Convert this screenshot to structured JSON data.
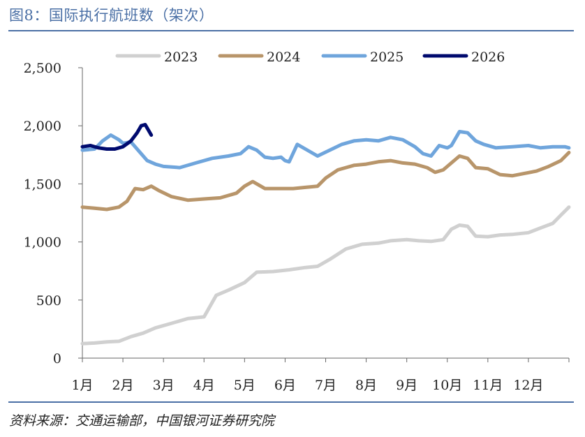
{
  "header": {
    "title": "图8：国际执行航班数（架次）"
  },
  "footer": {
    "source": "资料来源：交通运输部，中国银河证券研究院"
  },
  "colors": {
    "rule": "#4a6fa5",
    "s2023": "#d0d0d0",
    "s2024": "#b8956a",
    "s2025": "#6fa5dc",
    "s2026": "#000a6e"
  },
  "chart_data": {
    "type": "line",
    "title": "国际执行航班数（架次）",
    "xlabel": "",
    "ylabel": "",
    "ylim": [
      0,
      2500
    ],
    "xlim": [
      1,
      13
    ],
    "y_ticks": [
      "2,500",
      "2,000",
      "1,500",
      "1,000",
      "500",
      "0"
    ],
    "y_tick_values": [
      2500,
      2000,
      1500,
      1000,
      500,
      0
    ],
    "x_ticks": [
      "1月",
      "2月",
      "3月",
      "4月",
      "5月",
      "6月",
      "7月",
      "8月",
      "9月",
      "10月",
      "11月",
      "12月"
    ],
    "legend": [
      "2023",
      "2024",
      "2025",
      "2026"
    ],
    "legend_position": "top",
    "series": [
      {
        "name": "2023",
        "x": [
          1.0,
          1.3,
          1.6,
          1.9,
          2.2,
          2.5,
          2.8,
          3.2,
          3.6,
          4.0,
          4.3,
          4.6,
          5.0,
          5.3,
          5.7,
          6.1,
          6.5,
          6.8,
          7.1,
          7.5,
          7.9,
          8.3,
          8.6,
          9.0,
          9.3,
          9.6,
          9.9,
          10.1,
          10.3,
          10.5,
          10.7,
          11.0,
          11.3,
          11.6,
          12.0,
          12.3,
          12.6,
          12.8,
          13.0
        ],
        "values": [
          125,
          130,
          140,
          145,
          185,
          215,
          260,
          300,
          340,
          355,
          540,
          585,
          650,
          740,
          745,
          760,
          780,
          790,
          850,
          940,
          980,
          990,
          1010,
          1020,
          1010,
          1005,
          1020,
          1110,
          1145,
          1135,
          1050,
          1045,
          1060,
          1065,
          1080,
          1120,
          1160,
          1230,
          1300
        ]
      },
      {
        "name": "2024",
        "x": [
          1.0,
          1.3,
          1.6,
          1.9,
          2.1,
          2.3,
          2.5,
          2.7,
          2.9,
          3.2,
          3.6,
          4.0,
          4.4,
          4.8,
          5.0,
          5.2,
          5.5,
          5.9,
          6.2,
          6.5,
          6.8,
          7.0,
          7.3,
          7.7,
          8.0,
          8.3,
          8.6,
          8.9,
          9.2,
          9.5,
          9.7,
          9.9,
          10.1,
          10.3,
          10.5,
          10.7,
          11.0,
          11.3,
          11.6,
          11.9,
          12.2,
          12.5,
          12.8,
          13.0
        ],
        "values": [
          1300,
          1290,
          1280,
          1300,
          1350,
          1460,
          1450,
          1480,
          1440,
          1390,
          1360,
          1370,
          1380,
          1420,
          1480,
          1520,
          1460,
          1460,
          1460,
          1470,
          1480,
          1550,
          1620,
          1660,
          1670,
          1690,
          1700,
          1680,
          1670,
          1640,
          1600,
          1620,
          1680,
          1740,
          1720,
          1640,
          1630,
          1580,
          1570,
          1590,
          1610,
          1650,
          1700,
          1770
        ]
      },
      {
        "name": "2025",
        "x": [
          1.0,
          1.3,
          1.5,
          1.7,
          1.9,
          2.0,
          2.2,
          2.4,
          2.6,
          2.8,
          3.0,
          3.4,
          3.8,
          4.2,
          4.6,
          4.9,
          5.1,
          5.3,
          5.5,
          5.7,
          5.9,
          6.0,
          6.1,
          6.3,
          6.5,
          6.8,
          7.1,
          7.4,
          7.7,
          8.0,
          8.3,
          8.6,
          8.9,
          9.2,
          9.4,
          9.6,
          9.8,
          10.0,
          10.1,
          10.3,
          10.5,
          10.7,
          10.9,
          11.2,
          11.6,
          12.0,
          12.3,
          12.6,
          12.9,
          13.0
        ],
        "values": [
          1790,
          1800,
          1870,
          1920,
          1880,
          1850,
          1860,
          1780,
          1700,
          1670,
          1650,
          1640,
          1680,
          1720,
          1740,
          1760,
          1820,
          1790,
          1730,
          1720,
          1730,
          1700,
          1690,
          1840,
          1800,
          1740,
          1790,
          1840,
          1870,
          1880,
          1870,
          1900,
          1880,
          1820,
          1760,
          1740,
          1830,
          1810,
          1830,
          1950,
          1940,
          1870,
          1840,
          1810,
          1820,
          1830,
          1810,
          1820,
          1820,
          1810
        ]
      },
      {
        "name": "2026",
        "x": [
          1.0,
          1.2,
          1.4,
          1.6,
          1.8,
          2.0,
          2.2,
          2.35,
          2.45,
          2.55,
          2.65,
          2.7
        ],
        "values": [
          1820,
          1830,
          1810,
          1800,
          1800,
          1820,
          1870,
          1940,
          2000,
          2010,
          1950,
          1920
        ]
      }
    ]
  }
}
